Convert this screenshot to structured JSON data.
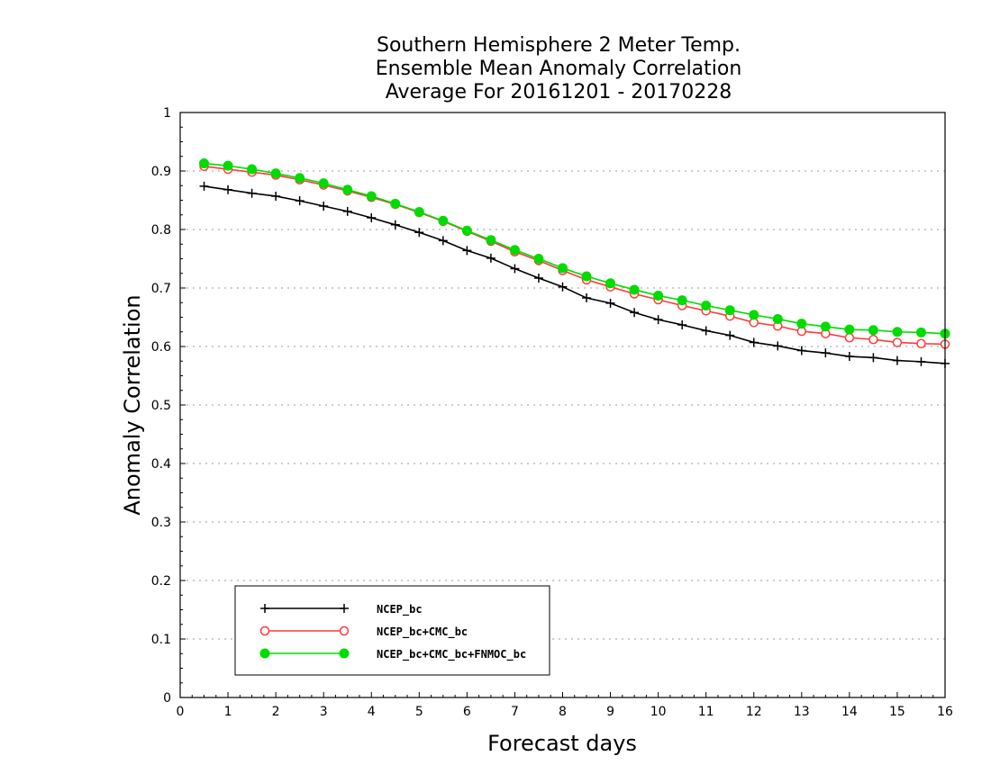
{
  "chart_data": {
    "type": "line",
    "title_lines": [
      "Southern Hemisphere 2 Meter Temp.",
      "Ensemble Mean Anomaly Correlation",
      "Average For 20161201 - 20170228"
    ],
    "xlabel": "Forecast days",
    "ylabel": "Anomaly Correlation",
    "xlim": [
      0,
      16
    ],
    "ylim": [
      0,
      1
    ],
    "xticks": [
      "0",
      "1",
      "2",
      "3",
      "4",
      "5",
      "6",
      "7",
      "8",
      "9",
      "10",
      "11",
      "12",
      "13",
      "14",
      "15",
      "16"
    ],
    "yticks": [
      "0",
      "0.1",
      "0.2",
      "0.3",
      "0.4",
      "0.5",
      "0.6",
      "0.7",
      "0.8",
      "0.9",
      "1"
    ],
    "grid": true,
    "legend_position": "bottom-left",
    "x": [
      0.5,
      1,
      1.5,
      2,
      2.5,
      3,
      3.5,
      4,
      4.5,
      5,
      5.5,
      6,
      6.5,
      7,
      7.5,
      8,
      8.5,
      9,
      9.5,
      10,
      10.5,
      11,
      11.5,
      12,
      12.5,
      13,
      13.5,
      14,
      14.5,
      15,
      15.5,
      16
    ],
    "series": [
      {
        "name": "NCEP_bc",
        "color": "#000000",
        "marker": "plus",
        "values": [
          0.874,
          0.868,
          0.862,
          0.857,
          0.849,
          0.84,
          0.831,
          0.82,
          0.808,
          0.795,
          0.781,
          0.764,
          0.751,
          0.733,
          0.717,
          0.702,
          0.683,
          0.674,
          0.658,
          0.646,
          0.637,
          0.627,
          0.619,
          0.607,
          0.601,
          0.593,
          0.589,
          0.583,
          0.581,
          0.576,
          0.574,
          0.571
        ]
      },
      {
        "name": "NCEP_bc+CMC_bc",
        "color": "#ff3a3a",
        "marker": "open-circle",
        "values": [
          0.908,
          0.903,
          0.898,
          0.893,
          0.885,
          0.876,
          0.866,
          0.855,
          0.843,
          0.829,
          0.814,
          0.797,
          0.78,
          0.762,
          0.747,
          0.73,
          0.714,
          0.702,
          0.69,
          0.68,
          0.67,
          0.661,
          0.652,
          0.641,
          0.635,
          0.626,
          0.622,
          0.615,
          0.612,
          0.607,
          0.605,
          0.604
        ]
      },
      {
        "name": "NCEP_bc+CMC_bc+FNMOC_bc",
        "color": "#00dc00",
        "marker": "filled-circle",
        "values": [
          0.913,
          0.909,
          0.903,
          0.896,
          0.888,
          0.879,
          0.868,
          0.857,
          0.844,
          0.83,
          0.815,
          0.798,
          0.782,
          0.765,
          0.75,
          0.734,
          0.72,
          0.708,
          0.697,
          0.687,
          0.679,
          0.67,
          0.662,
          0.654,
          0.647,
          0.639,
          0.634,
          0.629,
          0.628,
          0.625,
          0.624,
          0.622
        ]
      }
    ]
  }
}
